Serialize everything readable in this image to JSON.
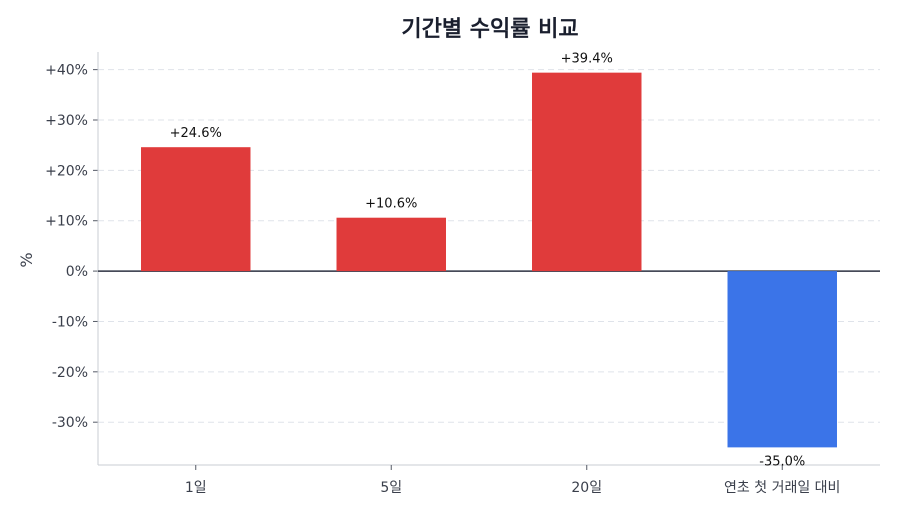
{
  "chart_data": {
    "type": "bar",
    "title": "기간별 수익률 비교",
    "xlabel": "",
    "ylabel": "%",
    "categories": [
      "1일",
      "5일",
      "20일",
      "연초 첫 거래일 대비"
    ],
    "values": [
      24.6,
      10.6,
      39.4,
      -35.0
    ],
    "value_labels": [
      "+24.6%",
      "+10.6%",
      "+39.4%",
      "-35.0%"
    ],
    "ylim": [
      -38.5,
      43.5
    ],
    "yticks": [
      -30,
      -20,
      -10,
      0,
      10,
      20,
      30,
      40
    ],
    "ytick_labels": [
      "-30%",
      "-20%",
      "-10%",
      "0%",
      "+10%",
      "+20%",
      "+30%",
      "+40%"
    ],
    "grid": true,
    "colors": {
      "positive": "#e03b3b",
      "negative": "#3b74e8",
      "zero_line": "#2b3040",
      "grid": "#dfe3ea",
      "axis": "#c9ccd3"
    }
  }
}
